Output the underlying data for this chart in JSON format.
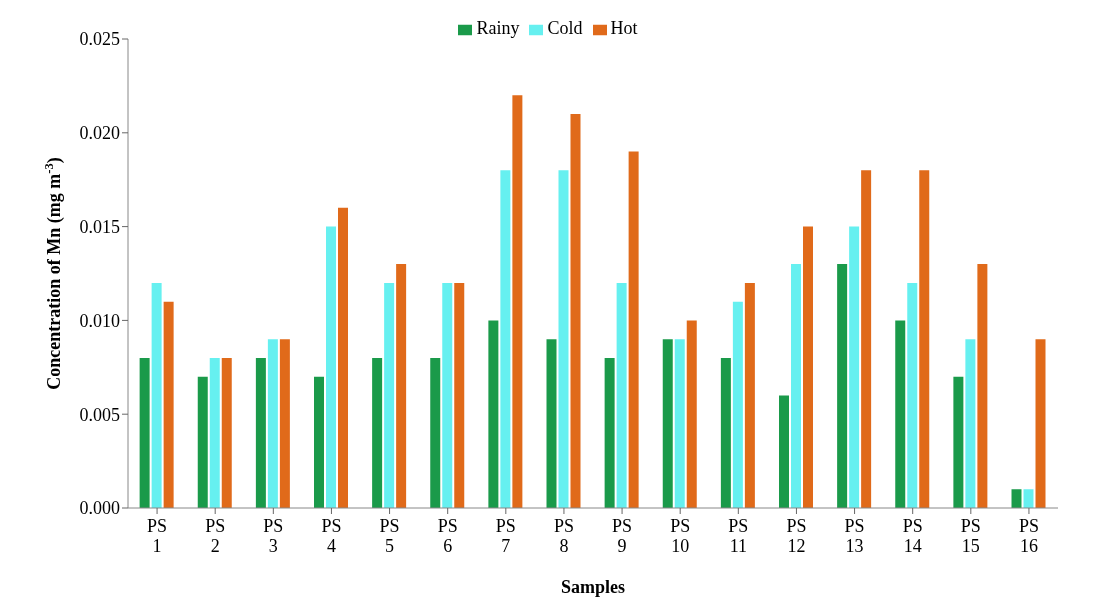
{
  "chart_data": {
    "type": "bar",
    "xlabel": "Samples",
    "ylabel": "Concentration of Mn (mg m$^{-3}$)",
    "categories": [
      "PS 1",
      "PS 2",
      "PS 3",
      "PS 4",
      "PS 5",
      "PS 6",
      "PS 7",
      "PS 8",
      "PS 9",
      "PS 10",
      "PS 11",
      "PS 12",
      "PS 13",
      "PS 14",
      "PS 15",
      "PS 16"
    ],
    "series": [
      {
        "name": "Rainy",
        "color": "#1a9a4a",
        "values": [
          0.008,
          0.007,
          0.008,
          0.007,
          0.008,
          0.008,
          0.01,
          0.009,
          0.008,
          0.009,
          0.008,
          0.006,
          0.013,
          0.01,
          0.007,
          0.001
        ]
      },
      {
        "name": "Cold",
        "color": "#66f0f0",
        "values": [
          0.012,
          0.008,
          0.009,
          0.015,
          0.012,
          0.012,
          0.018,
          0.018,
          0.012,
          0.009,
          0.011,
          0.013,
          0.015,
          0.012,
          0.009,
          0.001
        ]
      },
      {
        "name": "Hot",
        "color": "#e06a1a",
        "values": [
          0.011,
          0.008,
          0.009,
          0.016,
          0.013,
          0.012,
          0.022,
          0.021,
          0.019,
          0.01,
          0.012,
          0.015,
          0.018,
          0.018,
          0.013,
          0.009
        ]
      }
    ],
    "ylim": [
      0,
      0.025
    ],
    "yticks": [
      {
        "value": 0,
        "label": "0.000"
      },
      0.005,
      {
        "value": 0.01,
        "label": "0.010"
      },
      0.015,
      {
        "value": 0.02,
        "label": "0.020"
      },
      0.025
    ],
    "grid": false,
    "legend": "top"
  }
}
